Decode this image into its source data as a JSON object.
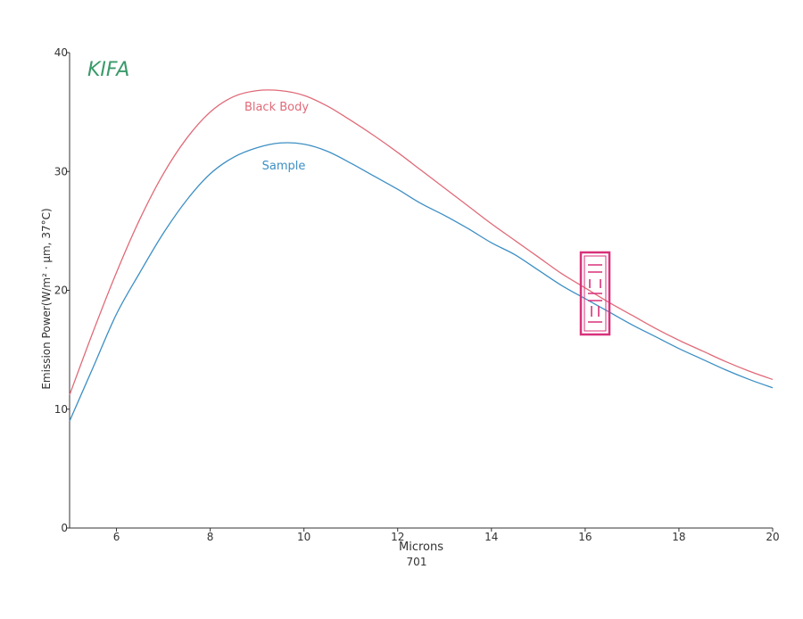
{
  "logo_text": "KIFA",
  "stamp_text": "원자력연구원",
  "colors": {
    "black_body": "#e06a78",
    "sample": "#3d8fc4",
    "logo": "#3a9a6a",
    "stamp": "#d8317a",
    "axis": "#333333"
  },
  "chart_data": {
    "type": "line",
    "xlabel": "Microns",
    "subtitle": "701",
    "ylabel": "Emission Power(W/m² · μm, 37°C)",
    "xlim": [
      5,
      20
    ],
    "ylim": [
      0,
      40
    ],
    "xticks": [
      6,
      8,
      10,
      12,
      14,
      16,
      18,
      20
    ],
    "yticks": [
      0,
      10,
      20,
      30,
      40
    ],
    "grid": false,
    "series": [
      {
        "name": "Black Body",
        "x": [
          5,
          5.5,
          6,
          6.5,
          7,
          7.5,
          8,
          8.5,
          9,
          9.5,
          10,
          10.5,
          11,
          11.5,
          12,
          12.5,
          13,
          13.5,
          14,
          14.5,
          15,
          15.5,
          16,
          16.5,
          17,
          17.5,
          18,
          18.5,
          19,
          19.5,
          20
        ],
        "y": [
          11.2,
          16.5,
          21.5,
          26.0,
          29.8,
          32.8,
          35.0,
          36.3,
          36.8,
          36.8,
          36.4,
          35.5,
          34.3,
          33.0,
          31.6,
          30.1,
          28.6,
          27.1,
          25.6,
          24.2,
          22.8,
          21.4,
          20.2,
          19.0,
          17.9,
          16.8,
          15.8,
          14.9,
          14.0,
          13.2,
          12.5
        ]
      },
      {
        "name": "Sample",
        "x": [
          5,
          5.5,
          6,
          6.5,
          7,
          7.5,
          8,
          8.5,
          9,
          9.5,
          10,
          10.5,
          11,
          11.5,
          12,
          12.5,
          13,
          13.5,
          14,
          14.5,
          15,
          15.5,
          16,
          16.5,
          17,
          17.5,
          18,
          18.5,
          19,
          19.5,
          20
        ],
        "y": [
          9.0,
          13.5,
          18.0,
          21.5,
          24.8,
          27.6,
          29.8,
          31.2,
          32.0,
          32.4,
          32.3,
          31.7,
          30.7,
          29.6,
          28.5,
          27.3,
          26.3,
          25.2,
          24.0,
          23.0,
          21.7,
          20.4,
          19.3,
          18.2,
          17.1,
          16.1,
          15.1,
          14.2,
          13.3,
          12.5,
          11.8
        ]
      }
    ]
  }
}
